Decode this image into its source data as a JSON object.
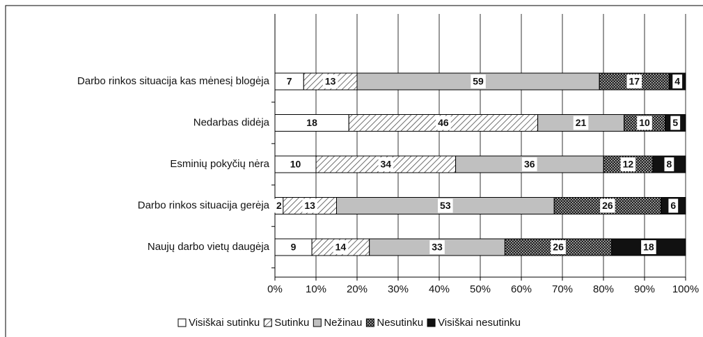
{
  "chart_data": {
    "type": "stacked_bar_horizontal",
    "categories": [
      "Darbo rinkos situacija kas mėnesį blogėja",
      "Nedarbas didėja",
      "Esminių pokyčių nėra",
      "Darbo rinkos situacija gerėja",
      "Naujų darbo vietų daugėja"
    ],
    "series": [
      {
        "name": "Visiškai sutinku",
        "color": "#ffffff",
        "values": [
          7,
          18,
          10,
          2,
          9
        ]
      },
      {
        "name": "Sutinku",
        "color": "#ffffff",
        "pattern": "diagonal",
        "values": [
          13,
          46,
          34,
          13,
          14
        ]
      },
      {
        "name": "Nežinau",
        "color": "#c0c0c0",
        "values": [
          59,
          21,
          36,
          53,
          33
        ]
      },
      {
        "name": "Nesutinku",
        "color": "#222222",
        "pattern": "dots",
        "values": [
          17,
          10,
          12,
          26,
          26
        ]
      },
      {
        "name": "Visiškai nesutinku",
        "color": "#111111",
        "values": [
          4,
          5,
          8,
          6,
          18
        ]
      }
    ],
    "xlim": [
      0,
      100
    ],
    "xticks": [
      {
        "value": 0,
        "label": "0%"
      },
      {
        "value": 10,
        "label": "10%"
      },
      {
        "value": 20,
        "label": "20%"
      },
      {
        "value": 30,
        "label": "30%"
      },
      {
        "value": 40,
        "label": "40%"
      },
      {
        "value": 50,
        "label": "50%"
      },
      {
        "value": 60,
        "label": "60%"
      },
      {
        "value": 70,
        "label": "70%"
      },
      {
        "value": 80,
        "label": "80%"
      },
      {
        "value": 90,
        "label": "90%"
      },
      {
        "value": 100,
        "label": "100%"
      }
    ],
    "grid": true,
    "legend": "bottom"
  }
}
